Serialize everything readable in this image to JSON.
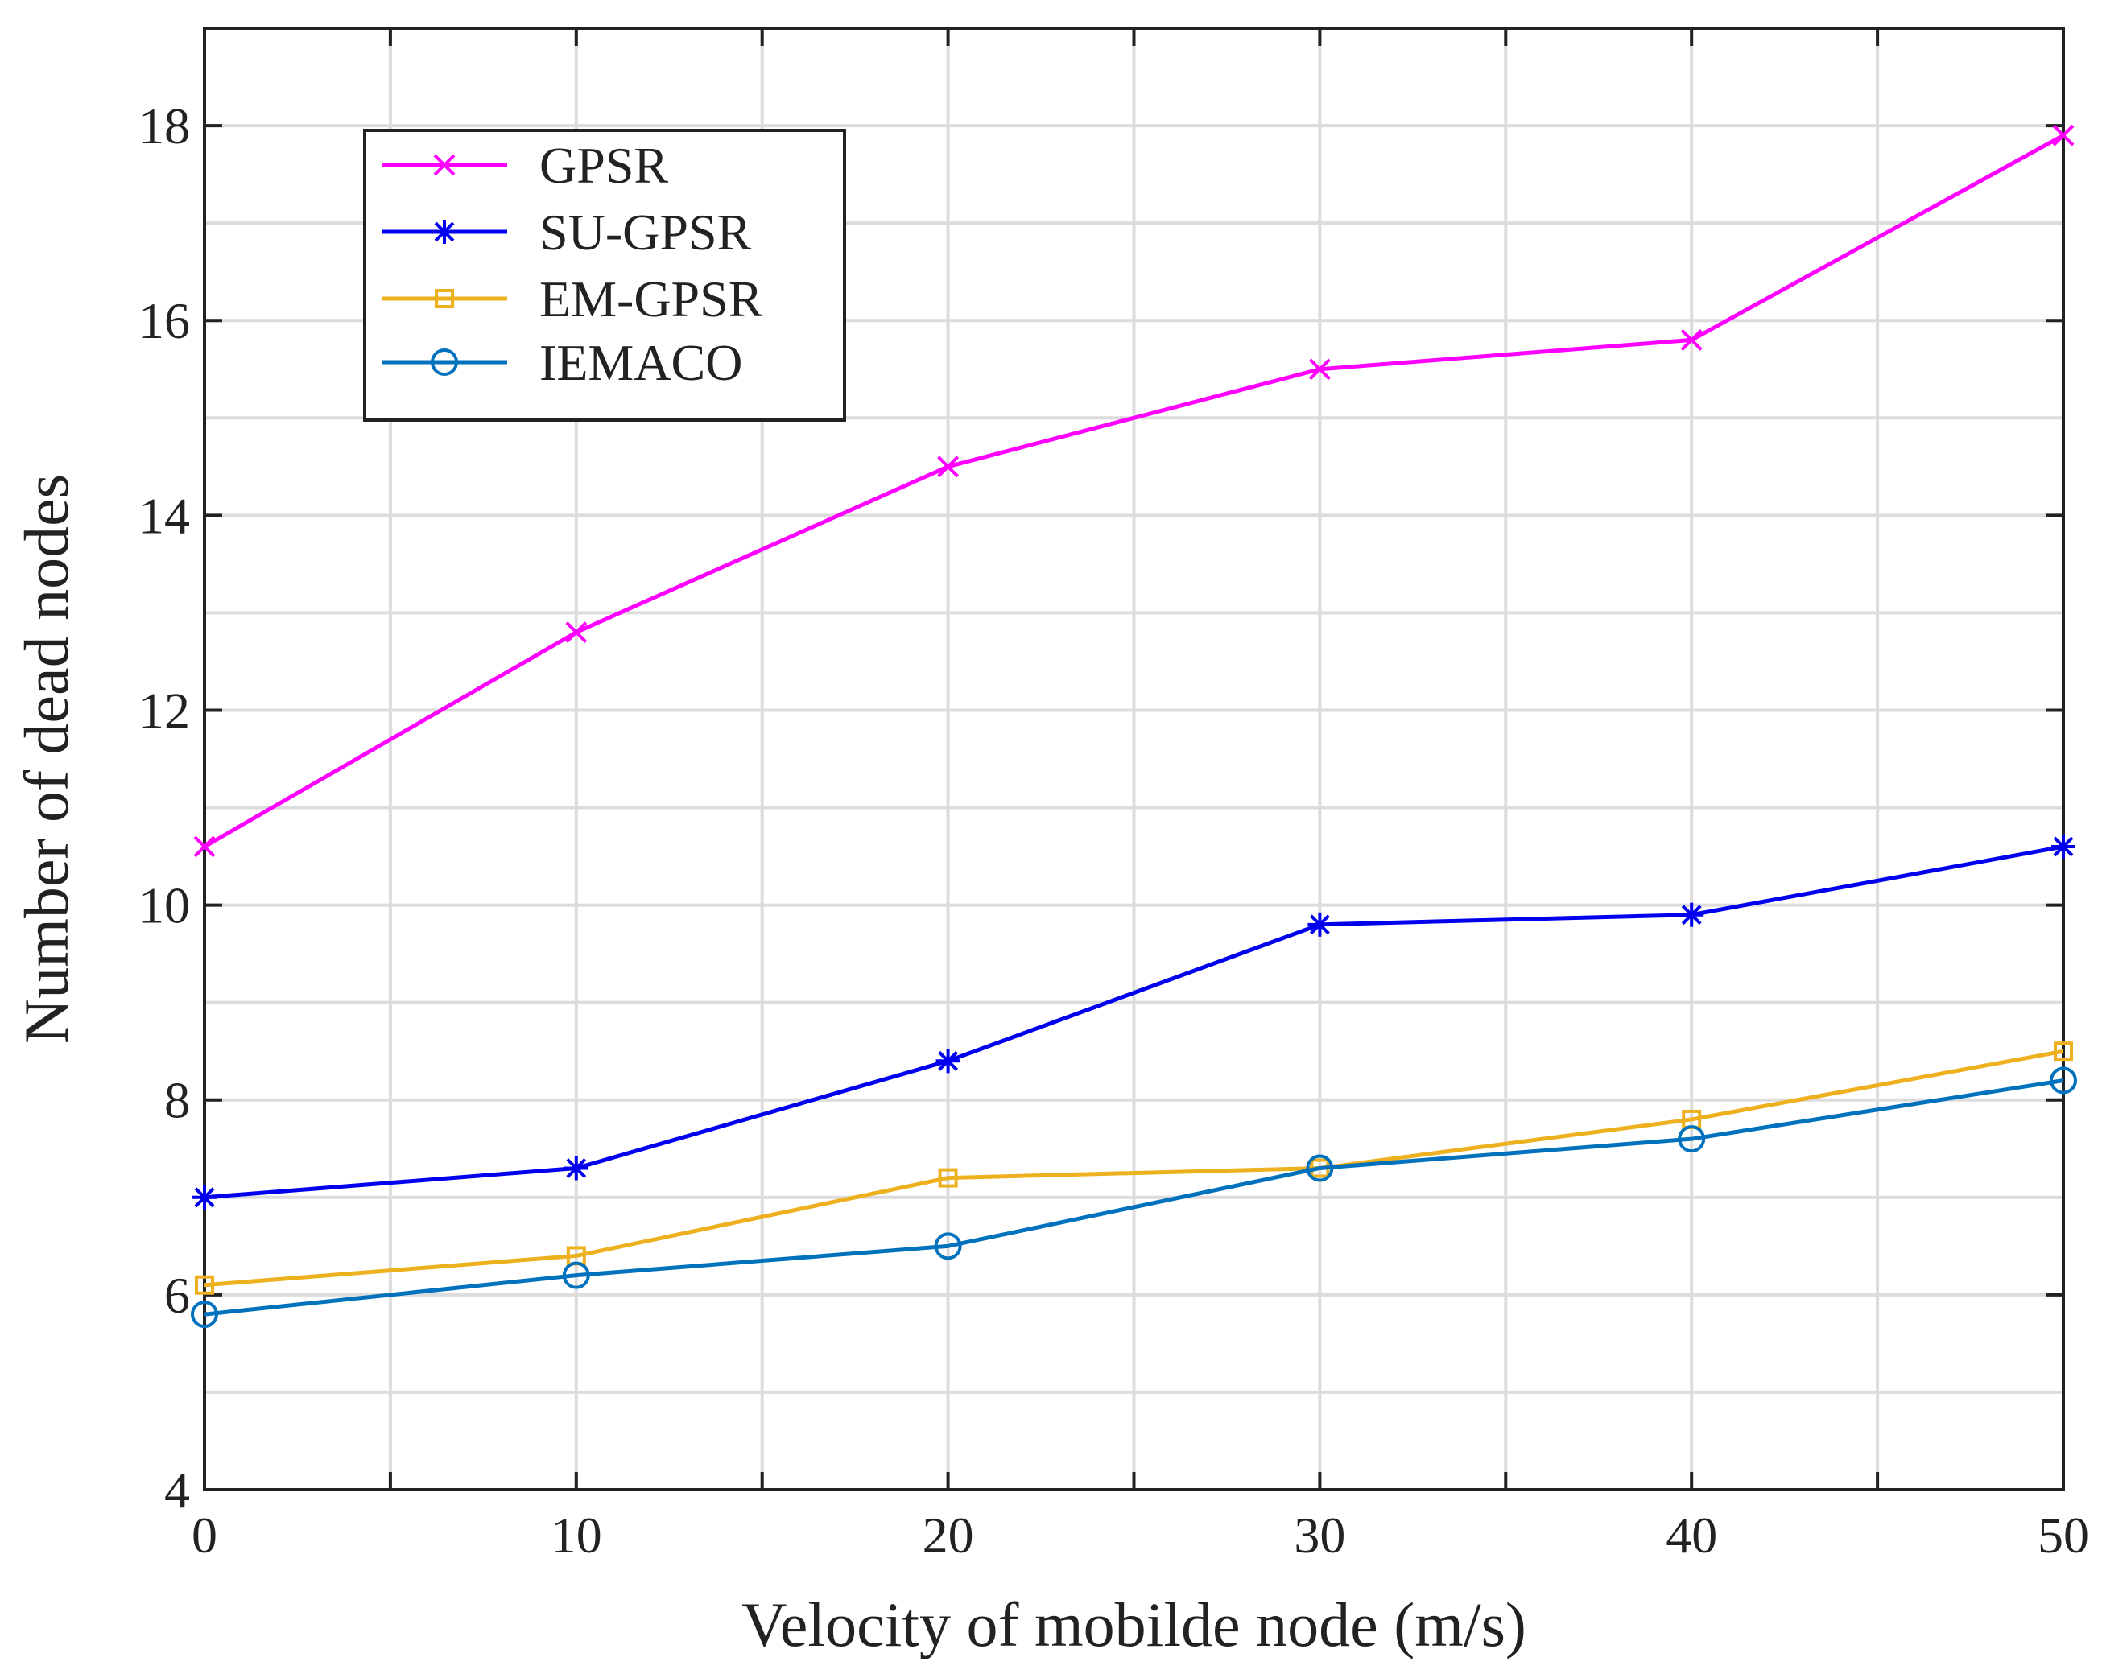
{
  "chart_data": {
    "type": "line",
    "title": "",
    "xlabel": "Velocity of mobilde node (m/s)",
    "ylabel": "Number of dead nodes",
    "xlim": [
      0,
      50
    ],
    "ylim": [
      4,
      19
    ],
    "xticks": [
      0,
      10,
      20,
      30,
      40,
      50
    ],
    "xtick_labels": [
      "0",
      "10",
      "20",
      "30",
      "40",
      "50"
    ],
    "yticks": [
      4,
      6,
      8,
      10,
      12,
      14,
      16,
      18
    ],
    "ytick_labels": [
      "4",
      "6",
      "8",
      "10",
      "12",
      "14",
      "16",
      "18"
    ],
    "x_minor_grid": [
      5,
      15,
      25,
      35,
      45
    ],
    "y_minor_grid": [
      5,
      7,
      9,
      11,
      13,
      15,
      17
    ],
    "grid": true,
    "legend_position": "top-left",
    "x": [
      0,
      10,
      20,
      30,
      40,
      50
    ],
    "series": [
      {
        "name": "GPSR",
        "values": [
          10.6,
          12.8,
          14.5,
          15.5,
          15.8,
          17.9
        ],
        "color": "#ff00ff",
        "marker": "x"
      },
      {
        "name": "SU-GPSR",
        "values": [
          7.0,
          7.3,
          8.4,
          9.8,
          9.9,
          10.6
        ],
        "color": "#0000ee",
        "marker": "asterisk"
      },
      {
        "name": "EM-GPSR",
        "values": [
          6.1,
          6.4,
          7.2,
          7.3,
          7.8,
          8.5
        ],
        "color": "#edb120",
        "marker": "square"
      },
      {
        "name": "IEMACO",
        "values": [
          5.8,
          6.2,
          6.5,
          7.3,
          7.6,
          8.2
        ],
        "color": "#0072bd",
        "marker": "circle"
      }
    ]
  }
}
